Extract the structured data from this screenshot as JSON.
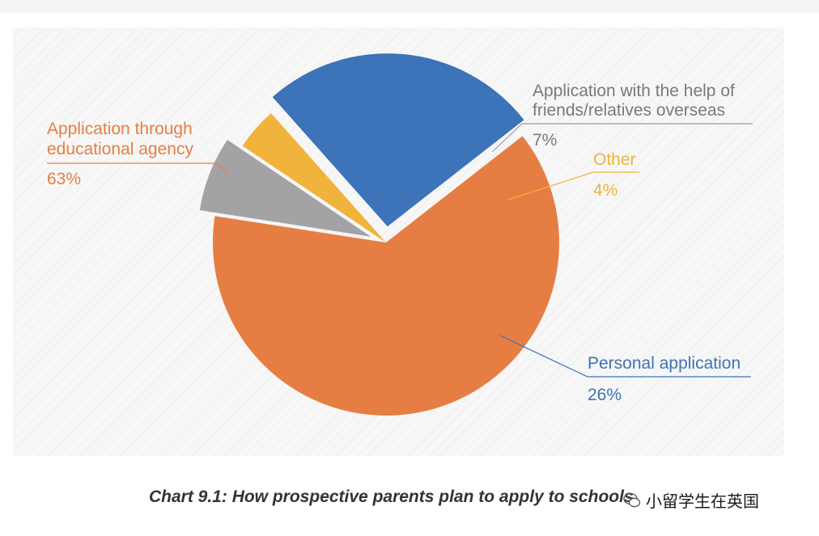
{
  "chart_data": {
    "type": "pie",
    "slices": [
      {
        "label": "Application through educational agency",
        "value": 63,
        "percent_label": "63%",
        "color": "#E67E43"
      },
      {
        "label": "Application with the help of friends/relatives overseas",
        "value": 7,
        "percent_label": "7%",
        "color": "#A3A3A5"
      },
      {
        "label": "Other",
        "value": 4,
        "percent_label": "4%",
        "color": "#F0B33B"
      },
      {
        "label": "Personal application",
        "value": 26,
        "percent_label": "26%",
        "color": "#3C73B9"
      }
    ],
    "exploded": [
      "Application with the help of friends/relatives overseas",
      "Personal application"
    ],
    "legend": "none",
    "labels": {
      "agency_line1": "Application through",
      "agency_line2": "educational agency",
      "friends_line1": "Application with the help of",
      "friends_line2": "friends/relatives overseas",
      "other": "Other",
      "personal": "Personal application"
    },
    "title": "Chart 9.1: How prospective parents plan to apply to schools"
  },
  "watermark": {
    "text": "小留学生在英国",
    "icon": "wechat-icon"
  }
}
